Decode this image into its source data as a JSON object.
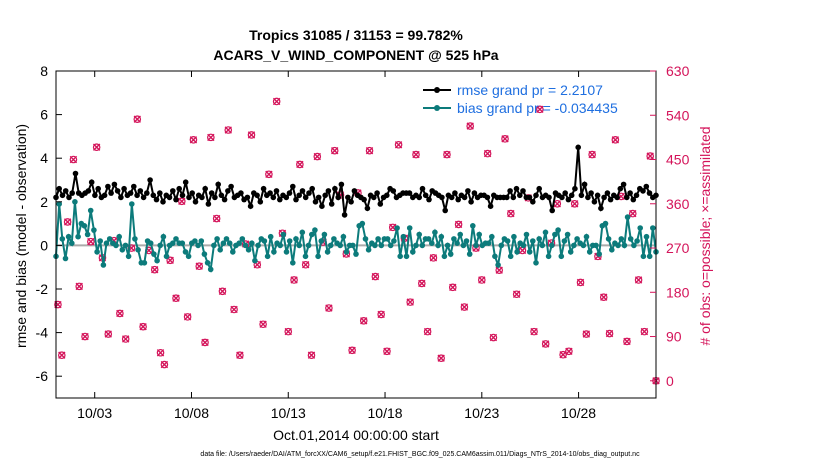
{
  "chart_data": {
    "type": "line",
    "title": "Tropics 31085 / 31153 = 99.782%",
    "subtitle": "ACARS_V_WIND_COMPONENT @ 525 hPa",
    "xlabel": "Oct.01,2014 00:00:00 start",
    "ylabel": "rmse and bias (model - observation)",
    "ylabel_right": "# of obs: o=possible; ×=assimilated",
    "footnote": "data file: /Users/raeder/DAI/ATM_forcXX/CAM6_setup/f.e21.FHIST_BGC.f09_025.CAM6assim.011/Diags_NTrS_2014-10/obs_diag_output.nc",
    "xlim": [
      1.0,
      32.0
    ],
    "ylim": [
      -7,
      8
    ],
    "ylim_right": [
      -35,
      630
    ],
    "x_ticks": [
      3,
      8,
      13,
      18,
      23,
      28
    ],
    "x_tick_labels": [
      "10/03",
      "10/08",
      "10/13",
      "10/18",
      "10/23",
      "10/28"
    ],
    "y_ticks": [
      -6,
      -4,
      -2,
      0,
      2,
      4,
      6,
      8
    ],
    "y_tick_labels": [
      "-6",
      "-4",
      "-2",
      "0",
      "2",
      "4",
      "6",
      "8"
    ],
    "y_right_ticks": [
      0,
      90,
      180,
      270,
      360,
      450,
      540,
      630
    ],
    "y_right_tick_labels": [
      "0",
      "90",
      "180",
      "270",
      "360",
      "450",
      "540",
      "630"
    ],
    "colors": {
      "rmse": "#000000",
      "bias": "#0c7b7b",
      "obs": "#d4145a",
      "legend_text": "#1f6fe0",
      "zero_line": "#aaaaaa"
    },
    "series": [
      {
        "name": "rmse grand pr = 2.2107",
        "axis": "left",
        "values": [
          2.2,
          2.6,
          2.3,
          2.5,
          2.2,
          2.4,
          3.3,
          2.4,
          2.3,
          2.4,
          2.5,
          2.9,
          2.3,
          2.6,
          2.2,
          2.3,
          2.7,
          2.4,
          2.8,
          2.5,
          2.2,
          2.6,
          2.3,
          2.4,
          2.7,
          2.3,
          2.5,
          2.2,
          2.4,
          3.0,
          2.3,
          2.1,
          2.4,
          2.0,
          2.3,
          2.2,
          2.5,
          2.1,
          2.6,
          2.3,
          2.9,
          2.2,
          2.4,
          2.0,
          2.3,
          2.2,
          2.6,
          1.9,
          2.4,
          2.2,
          2.8,
          2.3,
          2.1,
          2.5,
          2.7,
          2.2,
          2.3,
          2.4,
          2.1,
          2.2,
          1.8,
          2.4,
          2.3,
          2.0,
          2.6,
          2.3,
          2.4,
          2.2,
          2.5,
          2.1,
          2.3,
          2.2,
          2.4,
          2.7,
          2.1,
          2.3,
          2.5,
          2.2,
          2.4,
          2.6,
          2.0,
          2.2,
          1.8,
          2.3,
          2.5,
          1.9,
          2.6,
          2.2,
          2.8,
          1.4,
          2.2,
          2.0,
          2.5,
          2.3,
          2.2,
          2.1,
          1.7,
          2.3,
          2.2,
          2.4,
          1.9,
          2.2,
          2.3,
          2.6,
          2.5,
          2.2,
          2.3,
          2.4,
          2.4,
          2.4,
          2.2,
          2.3,
          2.2,
          2.6,
          2.3,
          2.1,
          2.5,
          2.4,
          2.3,
          2.2,
          1.6,
          2.3,
          2.2,
          2.4,
          2.1,
          2.3,
          2.2,
          2.5,
          2.0,
          2.4,
          2.2,
          2.3,
          2.3,
          2.2,
          1.8,
          2.3,
          2.2,
          2.2,
          2.2,
          2.2,
          2.5,
          2.2,
          2.6,
          2.3,
          2.5,
          2.2,
          2.2,
          2.0,
          2.3,
          2.6,
          2.2,
          2.3,
          2.2,
          1.6,
          2.4,
          2.3,
          2.2,
          2.4,
          2.1,
          2.3,
          2.6,
          4.5,
          2.3,
          2.8,
          2.2,
          2.4,
          2.0,
          2.3,
          1.7,
          2.2,
          2.4,
          2.1,
          2.3,
          2.2,
          2.6,
          2.8,
          2.2,
          2.4,
          2.1,
          2.3,
          2.6,
          2.5,
          2.7,
          2.4,
          2.2,
          2.3
        ]
      },
      {
        "name": "bias grand pr = -0.034435",
        "axis": "left",
        "values": [
          -0.5,
          1.9,
          0.3,
          -0.6,
          0.4,
          0.1,
          2.0,
          0.4,
          1.0,
          0.9,
          0.5,
          1.6,
          0.7,
          -0.3,
          0.2,
          -0.9,
          0.1,
          0.3,
          0.1,
          0.0,
          0.4,
          -0.2,
          0.0,
          -0.5,
          1.9,
          0.3,
          -0.2,
          -0.8,
          -0.8,
          0.2,
          0.1,
          -0.4,
          -0.7,
          0.0,
          0.4,
          -0.5,
          0.0,
          0.1,
          0.3,
          0.1,
          0.1,
          -0.3,
          -0.5,
          0.1,
          0.2,
          0.0,
          0.2,
          -0.4,
          -0.8,
          -1.1,
          0.0,
          0.3,
          -0.2,
          0.1,
          0.3,
          0.1,
          -0.3,
          0.0,
          0.1,
          0.3,
          0.0,
          -0.2,
          0.1,
          -0.7,
          0.0,
          0.3,
          0.2,
          -0.5,
          0.4,
          -0.3,
          0.1,
          0.0,
          0.5,
          -0.3,
          0.2,
          -0.8,
          0.3,
          0.0,
          0.6,
          -0.5,
          0.0,
          0.5,
          0.7,
          -0.5,
          0.2,
          0.5,
          -0.3,
          0.0,
          0.3,
          0.1,
          0.0,
          0.4,
          -0.3,
          0.0,
          0.0,
          -0.4,
          0.9,
          1.0,
          0.3,
          -0.2,
          0.1,
          0.0,
          0.3,
          0.0,
          0.3,
          0.3,
          0.0,
          0.2,
          0.8,
          -0.5,
          0.4,
          -0.5,
          0.8,
          -0.3,
          0.0,
          0.5,
          0.0,
          0.3,
          0.3,
          0.1,
          0.6,
          0.0,
          0.4,
          -0.5,
          0.0,
          -0.4,
          0.3,
          0.1,
          0.5,
          0.0,
          0.2,
          -0.4,
          0.9,
          0.0,
          0.5,
          0.0,
          0.1,
          0.1,
          0.4,
          -0.5,
          -0.9,
          0.0,
          0.3,
          0.2,
          -0.5,
          0.4,
          -0.3,
          0.1,
          0.0,
          0.5,
          -0.3,
          0.2,
          -0.8,
          0.3,
          0.0,
          0.6,
          -0.5,
          0.0,
          0.5,
          0.7,
          -0.5,
          0.2,
          0.5,
          -0.3,
          0.0,
          0.3,
          0.1,
          0.0,
          0.4,
          -0.3,
          0.0,
          0.0,
          -0.4,
          0.9,
          1.0,
          0.3,
          -0.2,
          0.1,
          0.0,
          0.3,
          0.0,
          1.3,
          0.3,
          0.0,
          0.2,
          0.8,
          -0.5,
          0.4,
          -0.5,
          0.8,
          -0.3
        ]
      }
    ],
    "obs_count": {
      "name": "number of observations (possible / assimilated)",
      "axis": "right",
      "points": [
        [
          1.1,
          155
        ],
        [
          1.3,
          52
        ],
        [
          1.6,
          323
        ],
        [
          1.9,
          450
        ],
        [
          2.2,
          192
        ],
        [
          2.5,
          90
        ],
        [
          2.8,
          283
        ],
        [
          3.1,
          475
        ],
        [
          3.4,
          250
        ],
        [
          3.7,
          95
        ],
        [
          4.0,
          285
        ],
        [
          4.3,
          137
        ],
        [
          4.6,
          85
        ],
        [
          4.9,
          270
        ],
        [
          5.2,
          532
        ],
        [
          5.5,
          110
        ],
        [
          5.8,
          265
        ],
        [
          6.1,
          226
        ],
        [
          6.4,
          57
        ],
        [
          6.6,
          33
        ],
        [
          6.9,
          245
        ],
        [
          7.2,
          168
        ],
        [
          7.5,
          365
        ],
        [
          7.8,
          130
        ],
        [
          8.1,
          490
        ],
        [
          8.4,
          233
        ],
        [
          8.7,
          78
        ],
        [
          9.0,
          495
        ],
        [
          9.3,
          330
        ],
        [
          9.6,
          182
        ],
        [
          9.9,
          510
        ],
        [
          10.2,
          145
        ],
        [
          10.5,
          52
        ],
        [
          10.8,
          278
        ],
        [
          11.1,
          500
        ],
        [
          11.4,
          236
        ],
        [
          11.7,
          115
        ],
        [
          12.0,
          420
        ],
        [
          12.4,
          568
        ],
        [
          12.7,
          300
        ],
        [
          13.0,
          100
        ],
        [
          13.3,
          205
        ],
        [
          13.6,
          440
        ],
        [
          13.9,
          236
        ],
        [
          14.2,
          52
        ],
        [
          14.5,
          456
        ],
        [
          14.8,
          282
        ],
        [
          15.1,
          148
        ],
        [
          15.4,
          468
        ],
        [
          15.7,
          378
        ],
        [
          16.0,
          258
        ],
        [
          16.3,
          62
        ],
        [
          16.6,
          382
        ],
        [
          16.9,
          122
        ],
        [
          17.2,
          468
        ],
        [
          17.5,
          212
        ],
        [
          17.8,
          135
        ],
        [
          18.1,
          60
        ],
        [
          18.4,
          312
        ],
        [
          18.7,
          480
        ],
        [
          19.0,
          290
        ],
        [
          19.3,
          160
        ],
        [
          19.6,
          460
        ],
        [
          19.9,
          198
        ],
        [
          20.2,
          100
        ],
        [
          20.5,
          250
        ],
        [
          20.9,
          46
        ],
        [
          21.2,
          460
        ],
        [
          21.5,
          190
        ],
        [
          21.8,
          318
        ],
        [
          22.1,
          150
        ],
        [
          22.4,
          518
        ],
        [
          22.7,
          270
        ],
        [
          23.0,
          205
        ],
        [
          23.3,
          462
        ],
        [
          23.6,
          88
        ],
        [
          23.9,
          225
        ],
        [
          24.2,
          492
        ],
        [
          24.5,
          340
        ],
        [
          24.8,
          176
        ],
        [
          25.1,
          265
        ],
        [
          25.4,
          372
        ],
        [
          25.7,
          100
        ],
        [
          26.0,
          552
        ],
        [
          26.3,
          75
        ],
        [
          26.6,
          280
        ],
        [
          26.9,
          360
        ],
        [
          27.2,
          53
        ],
        [
          27.5,
          60
        ],
        [
          27.8,
          360
        ],
        [
          28.1,
          200
        ],
        [
          28.4,
          95
        ],
        [
          28.7,
          460
        ],
        [
          29.0,
          253
        ],
        [
          29.3,
          170
        ],
        [
          29.6,
          96
        ],
        [
          29.9,
          490
        ],
        [
          30.2,
          375
        ],
        [
          30.5,
          80
        ],
        [
          30.8,
          340
        ],
        [
          31.1,
          205
        ],
        [
          31.4,
          100
        ],
        [
          31.7,
          457
        ],
        [
          32.0,
          0
        ]
      ]
    },
    "legend_position": "top-right",
    "grid": false
  }
}
